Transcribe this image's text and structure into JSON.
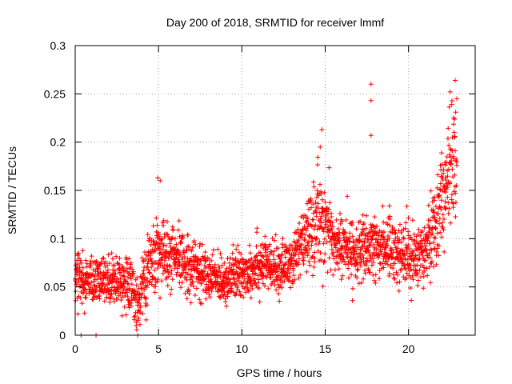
{
  "chart_data": {
    "type": "scatter",
    "title": "Day 200 of 2018, SRMTID for receiver lmmf",
    "xlabel": "GPS time / hours",
    "ylabel": "SRMTID / TECUs",
    "xlim": [
      0,
      24
    ],
    "ylim": [
      0,
      0.3
    ],
    "x_ticks": [
      0,
      5,
      10,
      15,
      20
    ],
    "x_tick_labels": [
      "0",
      "5",
      "10",
      "15",
      "20"
    ],
    "y_ticks": [
      0,
      0.05,
      0.1,
      0.15,
      0.2,
      0.25,
      0.3
    ],
    "y_tick_labels": [
      "0",
      "0.05",
      "0.1",
      "0.15",
      "0.2",
      "0.25",
      "0.3"
    ],
    "grid": true,
    "marker": "plus",
    "marker_color": "#ff0000",
    "data_range_hours": [
      0,
      22.9
    ],
    "trend": [
      {
        "x": 0.0,
        "y": 0.06,
        "spread": 0.018
      },
      {
        "x": 1.0,
        "y": 0.055,
        "spread": 0.016
      },
      {
        "x": 2.0,
        "y": 0.058,
        "spread": 0.016
      },
      {
        "x": 3.0,
        "y": 0.057,
        "spread": 0.017
      },
      {
        "x": 3.8,
        "y": 0.035,
        "spread": 0.022
      },
      {
        "x": 4.5,
        "y": 0.075,
        "spread": 0.02
      },
      {
        "x": 5.0,
        "y": 0.085,
        "spread": 0.025
      },
      {
        "x": 6.0,
        "y": 0.078,
        "spread": 0.02
      },
      {
        "x": 7.0,
        "y": 0.072,
        "spread": 0.02
      },
      {
        "x": 8.0,
        "y": 0.06,
        "spread": 0.016
      },
      {
        "x": 9.0,
        "y": 0.058,
        "spread": 0.016
      },
      {
        "x": 10.0,
        "y": 0.063,
        "spread": 0.018
      },
      {
        "x": 11.0,
        "y": 0.075,
        "spread": 0.02
      },
      {
        "x": 12.0,
        "y": 0.068,
        "spread": 0.016
      },
      {
        "x": 13.0,
        "y": 0.075,
        "spread": 0.018
      },
      {
        "x": 14.0,
        "y": 0.105,
        "spread": 0.022
      },
      {
        "x": 14.8,
        "y": 0.125,
        "spread": 0.035
      },
      {
        "x": 15.5,
        "y": 0.095,
        "spread": 0.022
      },
      {
        "x": 16.5,
        "y": 0.088,
        "spread": 0.02
      },
      {
        "x": 17.5,
        "y": 0.085,
        "spread": 0.022
      },
      {
        "x": 18.5,
        "y": 0.095,
        "spread": 0.022
      },
      {
        "x": 19.5,
        "y": 0.085,
        "spread": 0.022
      },
      {
        "x": 20.5,
        "y": 0.08,
        "spread": 0.02
      },
      {
        "x": 21.5,
        "y": 0.11,
        "spread": 0.03
      },
      {
        "x": 22.5,
        "y": 0.17,
        "spread": 0.04
      },
      {
        "x": 22.9,
        "y": 0.19,
        "spread": 0.035
      }
    ],
    "notable_points": [
      {
        "x": 0.35,
        "y": 0.0
      },
      {
        "x": 1.25,
        "y": 0.0
      },
      {
        "x": 3.75,
        "y": 0.0
      },
      {
        "x": 4.95,
        "y": 0.163
      },
      {
        "x": 5.1,
        "y": 0.16
      },
      {
        "x": 14.8,
        "y": 0.213
      },
      {
        "x": 14.7,
        "y": 0.195
      },
      {
        "x": 17.75,
        "y": 0.26
      },
      {
        "x": 17.75,
        "y": 0.243
      },
      {
        "x": 17.75,
        "y": 0.207
      },
      {
        "x": 22.8,
        "y": 0.264
      },
      {
        "x": 22.5,
        "y": 0.252
      },
      {
        "x": 22.9,
        "y": 0.245
      }
    ]
  }
}
